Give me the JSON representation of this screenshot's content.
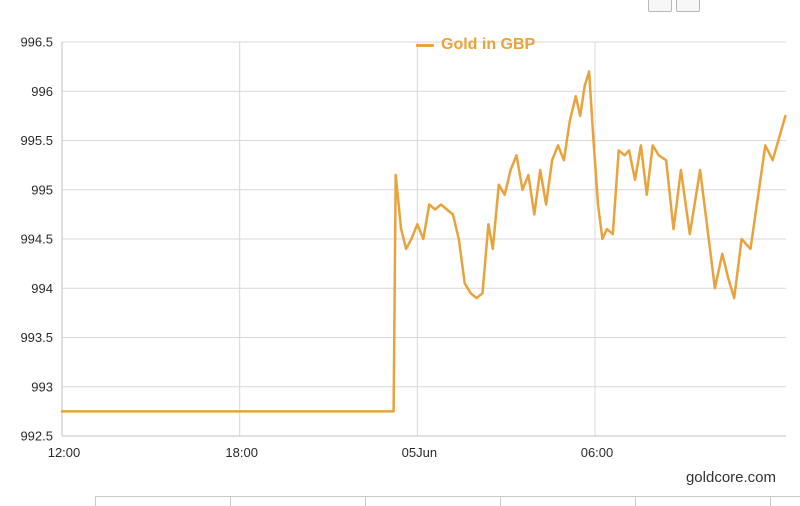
{
  "chart_data": {
    "type": "line",
    "title": "Gold in GBP",
    "legend_position": "top-center",
    "grid": true,
    "series": [
      {
        "name": "Gold in GBP",
        "color": "#E8A33C",
        "points": [
          [
            0,
            992.75
          ],
          [
            11.2,
            992.75
          ],
          [
            11.27,
            995.15
          ],
          [
            11.45,
            994.6
          ],
          [
            11.62,
            994.4
          ],
          [
            11.8,
            994.5
          ],
          [
            12.0,
            994.65
          ],
          [
            12.2,
            994.5
          ],
          [
            12.4,
            994.85
          ],
          [
            12.6,
            994.8
          ],
          [
            12.8,
            994.85
          ],
          [
            13.0,
            994.8
          ],
          [
            13.2,
            994.75
          ],
          [
            13.4,
            994.5
          ],
          [
            13.6,
            994.05
          ],
          [
            13.8,
            993.95
          ],
          [
            14.0,
            993.9
          ],
          [
            14.2,
            993.95
          ],
          [
            14.4,
            994.65
          ],
          [
            14.55,
            994.4
          ],
          [
            14.75,
            995.05
          ],
          [
            14.95,
            994.95
          ],
          [
            15.15,
            995.2
          ],
          [
            15.35,
            995.35
          ],
          [
            15.55,
            995.0
          ],
          [
            15.75,
            995.15
          ],
          [
            15.95,
            994.75
          ],
          [
            16.15,
            995.2
          ],
          [
            16.35,
            994.85
          ],
          [
            16.55,
            995.3
          ],
          [
            16.75,
            995.45
          ],
          [
            16.95,
            995.3
          ],
          [
            17.15,
            995.7
          ],
          [
            17.35,
            995.95
          ],
          [
            17.5,
            995.75
          ],
          [
            17.65,
            996.05
          ],
          [
            17.8,
            996.2
          ],
          [
            17.95,
            995.5
          ],
          [
            18.1,
            994.85
          ],
          [
            18.25,
            994.5
          ],
          [
            18.4,
            994.6
          ],
          [
            18.6,
            994.55
          ],
          [
            18.8,
            995.4
          ],
          [
            19.0,
            995.35
          ],
          [
            19.15,
            995.4
          ],
          [
            19.35,
            995.1
          ],
          [
            19.55,
            995.45
          ],
          [
            19.75,
            994.95
          ],
          [
            19.95,
            995.45
          ],
          [
            20.15,
            995.35
          ],
          [
            20.4,
            995.3
          ],
          [
            20.65,
            994.6
          ],
          [
            20.9,
            995.2
          ],
          [
            21.2,
            994.55
          ],
          [
            21.55,
            995.2
          ],
          [
            22.05,
            994.0
          ],
          [
            22.3,
            994.35
          ],
          [
            22.5,
            994.1
          ],
          [
            22.7,
            993.9
          ],
          [
            22.95,
            994.5
          ],
          [
            23.25,
            994.4
          ],
          [
            23.75,
            995.45
          ],
          [
            24.0,
            995.3
          ],
          [
            24.43,
            995.75
          ]
        ]
      }
    ],
    "x_axis": {
      "min": 0,
      "max": 24.45,
      "ticks": [
        {
          "h": 0,
          "label": "12:00"
        },
        {
          "h": 6,
          "label": "18:00"
        },
        {
          "h": 12,
          "label": "05Jun"
        },
        {
          "h": 18,
          "label": "06:00"
        }
      ]
    },
    "y_axis": {
      "min": 992.5,
      "max": 996.5,
      "tick_interval": 0.5,
      "labels": [
        "992.5",
        "993",
        "993.5",
        "994",
        "994.5",
        "995",
        "995.5",
        "996",
        "996.5"
      ]
    }
  },
  "colors": {
    "line": "#E8A33C",
    "grid": "#D8D8D8",
    "axis": "#C0C0C0",
    "label": "#2B2B2B"
  },
  "footer": {
    "watermark": "goldcore.com"
  }
}
